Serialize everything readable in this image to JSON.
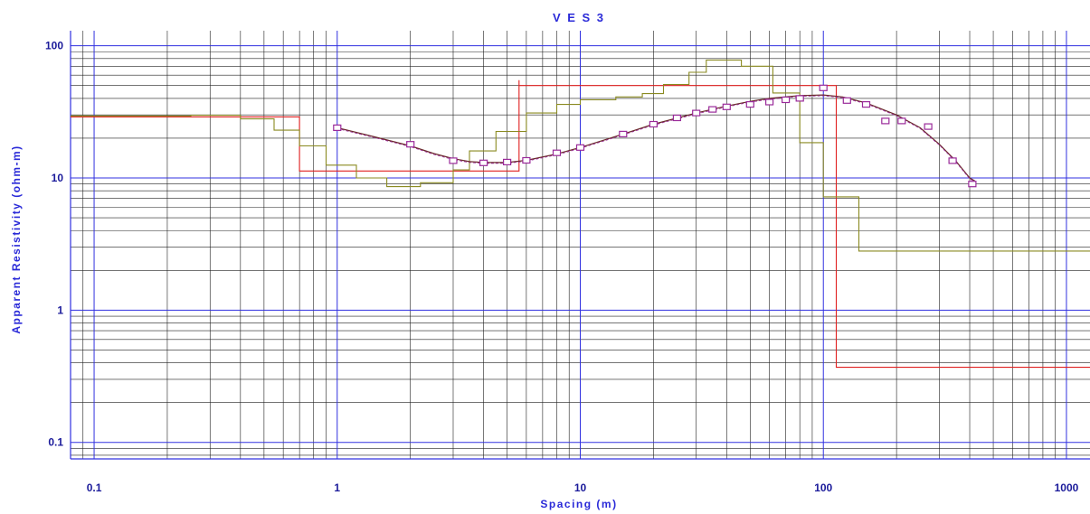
{
  "chart_data": {
    "type": "line",
    "title": "V E S 3",
    "xlabel": "Spacing  (m)",
    "ylabel": "Apparent Resistivity  (ohm-m)",
    "x_scale": "log",
    "y_scale": "log",
    "xlim": [
      0.08,
      1250
    ],
    "ylim": [
      0.075,
      130
    ],
    "x_tick_labels": [
      "0.1",
      "1",
      "10",
      "100",
      "1000"
    ],
    "x_tick_values": [
      0.1,
      1,
      10,
      100,
      1000
    ],
    "y_tick_labels": [
      "0.1",
      "1",
      "10",
      "100"
    ],
    "y_tick_values": [
      0.1,
      1,
      10,
      100
    ],
    "grid": true,
    "colors": {
      "major_grid": "#3030e0",
      "minor_grid": "#202020",
      "measured": "#9a2a9a",
      "model_red": "#e02020",
      "model_olive": "#8a8a20",
      "calc_curve": "#6a2a2a"
    },
    "series": [
      {
        "kind": "measured_points",
        "points": [
          [
            1,
            24
          ],
          [
            2,
            18
          ],
          [
            3,
            13.5
          ],
          [
            4,
            13
          ],
          [
            5,
            13.2
          ],
          [
            6,
            13.6
          ],
          [
            8,
            15.5
          ],
          [
            10,
            17
          ],
          [
            15,
            21.5
          ],
          [
            20,
            25.5
          ],
          [
            25,
            28.5
          ],
          [
            30,
            31
          ],
          [
            35,
            33
          ],
          [
            40,
            34.5
          ],
          [
            50,
            36
          ],
          [
            60,
            37.5
          ],
          [
            70,
            39
          ],
          [
            80,
            40
          ],
          [
            100,
            48
          ],
          [
            125,
            38.5
          ],
          [
            150,
            36
          ],
          [
            180,
            27
          ],
          [
            210,
            27
          ],
          [
            270,
            24.5
          ],
          [
            340,
            13.5
          ],
          [
            410,
            9
          ]
        ]
      },
      {
        "kind": "calculated_curve",
        "points": [
          [
            1,
            24
          ],
          [
            1.5,
            20
          ],
          [
            2,
            17.5
          ],
          [
            2.5,
            15.3
          ],
          [
            3,
            14
          ],
          [
            3.5,
            13.3
          ],
          [
            4,
            13.1
          ],
          [
            5,
            13.1
          ],
          [
            6,
            13.6
          ],
          [
            8,
            15.2
          ],
          [
            10,
            17
          ],
          [
            15,
            21.5
          ],
          [
            20,
            25.5
          ],
          [
            30,
            31
          ],
          [
            40,
            35
          ],
          [
            50,
            38
          ],
          [
            60,
            40
          ],
          [
            80,
            42
          ],
          [
            100,
            42.5
          ],
          [
            120,
            41
          ],
          [
            150,
            37
          ],
          [
            200,
            30
          ],
          [
            250,
            24
          ],
          [
            300,
            18
          ],
          [
            350,
            13.5
          ],
          [
            400,
            10
          ],
          [
            420,
            9.5
          ]
        ]
      },
      {
        "kind": "model_step_red",
        "points": [
          [
            0.08,
            29
          ],
          [
            0.7,
            29
          ],
          [
            0.7,
            11.3
          ],
          [
            5.6,
            11.3
          ],
          [
            5.6,
            55
          ],
          [
            5.6,
            50
          ],
          [
            113,
            50
          ],
          [
            113,
            0.37
          ],
          [
            1250,
            0.37
          ]
        ]
      },
      {
        "kind": "model_step_olive",
        "points": [
          [
            0.08,
            29.5
          ],
          [
            0.25,
            29.5
          ],
          [
            0.25,
            29.8
          ],
          [
            0.4,
            29.8
          ],
          [
            0.4,
            28
          ],
          [
            0.55,
            28
          ],
          [
            0.55,
            23
          ],
          [
            0.7,
            23
          ],
          [
            0.7,
            17.5
          ],
          [
            0.9,
            17.5
          ],
          [
            0.9,
            12.5
          ],
          [
            1.2,
            12.5
          ],
          [
            1.2,
            10
          ],
          [
            1.6,
            10
          ],
          [
            1.6,
            8.6
          ],
          [
            2.2,
            8.6
          ],
          [
            2.2,
            9.2
          ],
          [
            3,
            9.2
          ],
          [
            3,
            11.5
          ],
          [
            3.5,
            11.5
          ],
          [
            3.5,
            16
          ],
          [
            4.5,
            16
          ],
          [
            4.5,
            22.5
          ],
          [
            6,
            22.5
          ],
          [
            6,
            31
          ],
          [
            8,
            31
          ],
          [
            8,
            36
          ],
          [
            10,
            36
          ],
          [
            10,
            39
          ],
          [
            14,
            39
          ],
          [
            14,
            41
          ],
          [
            18,
            41
          ],
          [
            18,
            43.5
          ],
          [
            22,
            43.5
          ],
          [
            22,
            51
          ],
          [
            28,
            51
          ],
          [
            28,
            63
          ],
          [
            33,
            63
          ],
          [
            33,
            78
          ],
          [
            46,
            78
          ],
          [
            46,
            70
          ],
          [
            62,
            70
          ],
          [
            62,
            44
          ],
          [
            80,
            44
          ],
          [
            80,
            18.5
          ],
          [
            100,
            18.5
          ],
          [
            100,
            7.2
          ],
          [
            140,
            7.2
          ],
          [
            140,
            2.8
          ],
          [
            1250,
            2.8
          ]
        ]
      }
    ]
  }
}
